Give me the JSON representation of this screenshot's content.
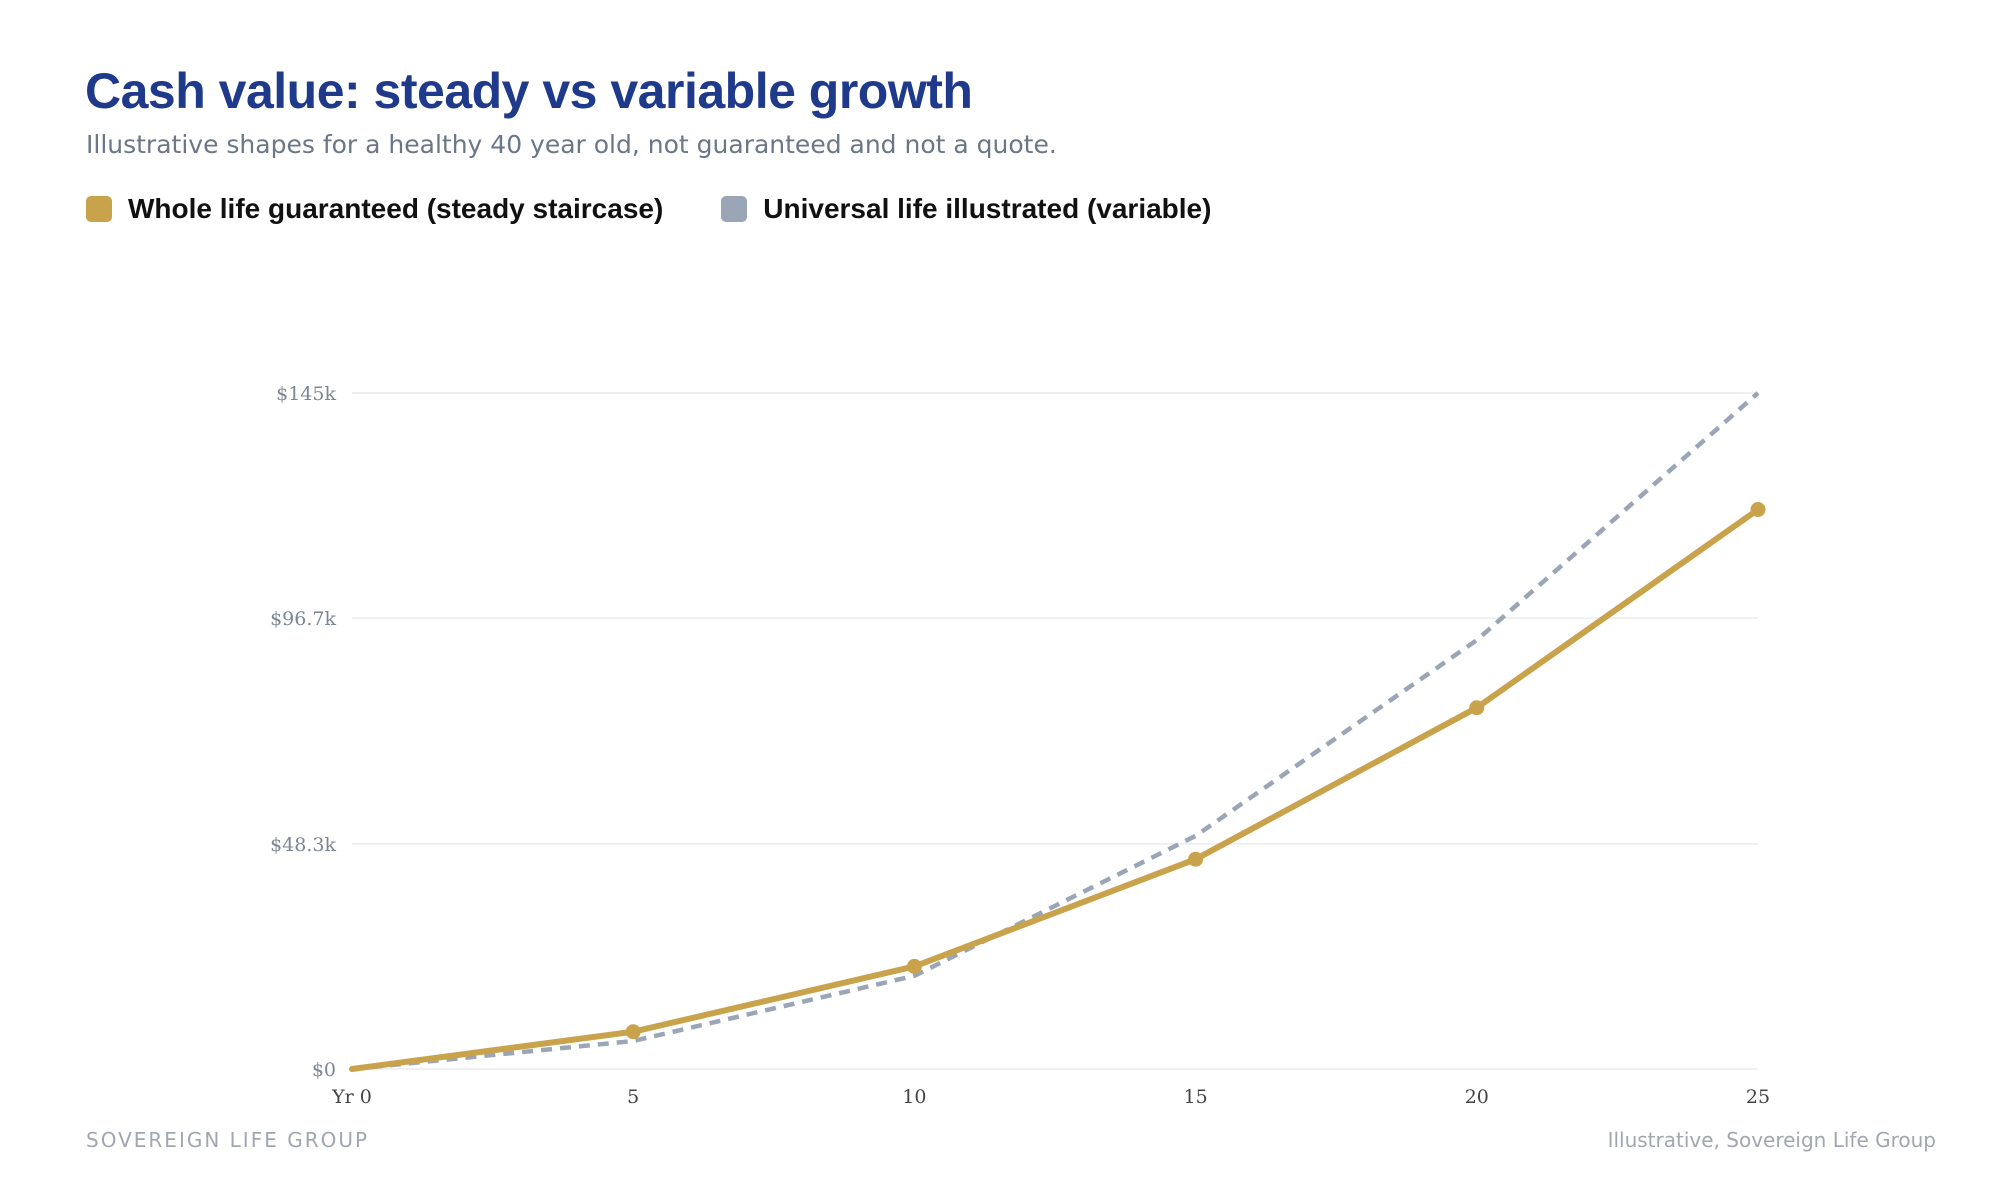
{
  "header": {
    "title": "Cash value: steady vs variable growth",
    "subtitle": "Illustrative shapes for a healthy 40 year old, not guaranteed and not a quote."
  },
  "legend": [
    {
      "label": "Whole life guaranteed (steady staircase)",
      "color": "#c9a24c"
    },
    {
      "label": "Universal life illustrated (variable)",
      "color": "#9aa5b6"
    }
  ],
  "footer": {
    "brand": "SOVEREIGN LIFE GROUP",
    "credit": "Illustrative, Sovereign Life Group"
  },
  "chart_data": {
    "type": "line",
    "x": [
      0,
      5,
      10,
      15,
      20,
      25
    ],
    "x_tick_labels": [
      "Yr 0",
      "5",
      "10",
      "15",
      "20",
      "25"
    ],
    "y_ticks": [
      0,
      48300,
      96700,
      145000
    ],
    "y_tick_labels": [
      "$0",
      "$48.3k",
      "$96.7k",
      "$145k"
    ],
    "ylim": [
      0,
      145000
    ],
    "xlim": [
      0,
      25
    ],
    "grid": true,
    "legend_position": "top-left",
    "series": [
      {
        "name": "Whole life guaranteed (steady staircase)",
        "values": [
          0,
          8000,
          22000,
          45000,
          77500,
          120000
        ],
        "color": "#c9a24c",
        "style": "solid",
        "markers": true
      },
      {
        "name": "Universal life illustrated (variable)",
        "values": [
          0,
          6000,
          20000,
          50000,
          92000,
          145000
        ],
        "color": "#9aa5b6",
        "style": "dashed",
        "markers": false
      }
    ]
  }
}
